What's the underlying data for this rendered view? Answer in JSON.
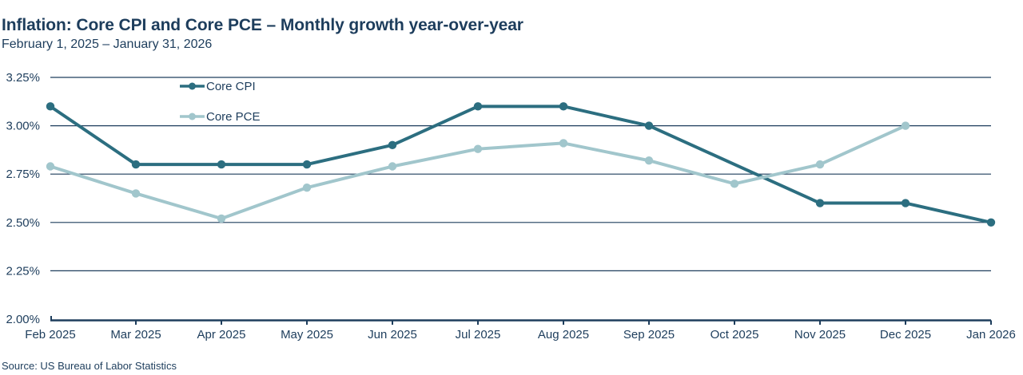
{
  "header": {
    "title": "Inflation: Core CPI and Core PCE – Monthly growth year-over-year",
    "subtitle": "February 1, 2025 – January 31, 2026"
  },
  "footer": {
    "source": "Source: US Bureau of Labor Statistics"
  },
  "colors": {
    "text": "#1d3d5c",
    "grid": "#1d3d5c",
    "axis": "#1d3d5c",
    "core_cpi": "#2c6e80",
    "core_pce": "#a1c6cc",
    "background": "#ffffff"
  },
  "chart_data": {
    "type": "line",
    "title": "Inflation: Core CPI and Core PCE – Monthly growth year-over-year",
    "subtitle": "February 1, 2025 – January 31, 2026",
    "xlabel": "",
    "ylabel": "",
    "x_labels": [
      "Feb 2025",
      "Mar 2025",
      "Apr 2025",
      "May 2025",
      "Jun 2025",
      "Jul 2025",
      "Aug 2025",
      "Sep 2025",
      "Oct 2025",
      "Nov 2025",
      "Dec 2025",
      "Jan 2026"
    ],
    "y_tick_labels": [
      "3.25%",
      "3.00%",
      "2.75%",
      "2.50%",
      "2.25%",
      "2.00%"
    ],
    "y_tick_values": [
      3.25,
      3.0,
      2.75,
      2.5,
      2.25,
      2.0
    ],
    "ylim": [
      2.0,
      3.25
    ],
    "grid": true,
    "legend_position": "inside-top-left",
    "series": [
      {
        "name": "Core CPI",
        "color": "#2c6e80",
        "values": [
          3.1,
          2.8,
          2.8,
          2.8,
          2.9,
          3.1,
          3.1,
          3.0,
          2.8,
          2.6,
          2.6,
          2.5
        ],
        "markers": [
          true,
          true,
          true,
          true,
          true,
          true,
          true,
          true,
          false,
          true,
          true,
          true
        ]
      },
      {
        "name": "Core PCE",
        "color": "#a1c6cc",
        "values": [
          2.79,
          2.65,
          2.52,
          2.68,
          2.79,
          2.88,
          2.91,
          2.82,
          2.7,
          2.8,
          3.0,
          null
        ],
        "markers": [
          true,
          true,
          true,
          true,
          true,
          true,
          true,
          true,
          true,
          true,
          true,
          false
        ]
      }
    ],
    "source": "Source: US Bureau of Labor Statistics"
  }
}
